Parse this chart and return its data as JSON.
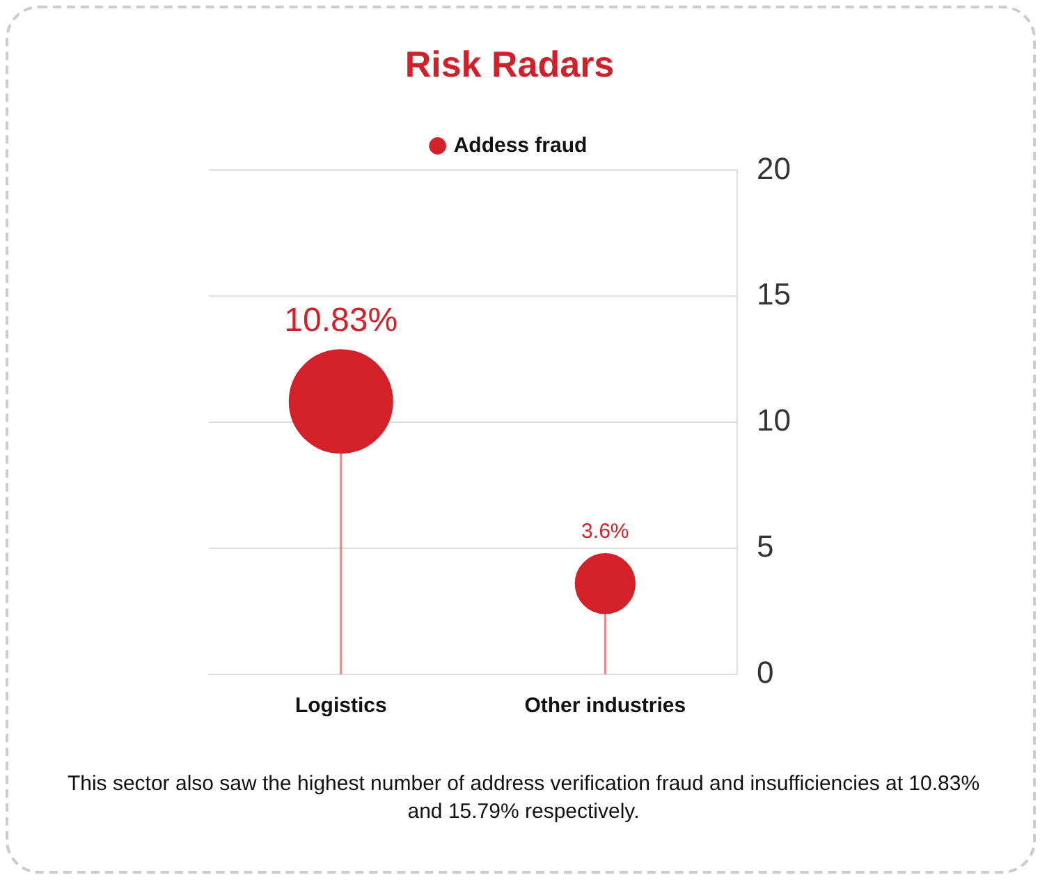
{
  "chart_data": {
    "type": "lollipop",
    "title": "Risk Radars",
    "categories": [
      "Logistics",
      "Other industries"
    ],
    "series": [
      {
        "name": "Addess fraud",
        "color": "#d42129",
        "values": [
          10.83,
          3.6
        ],
        "value_labels": [
          "10.83%",
          "3.6%"
        ]
      }
    ],
    "ylim": [
      0,
      20
    ],
    "yticks": [
      0,
      5,
      10,
      15,
      20
    ],
    "grid": "y",
    "legend": "top",
    "marker": "circle",
    "annotations": [
      "This sector also saw the highest number of address verification fraud and insufficiencies at 10.83% and 15.79% respectively."
    ]
  }
}
